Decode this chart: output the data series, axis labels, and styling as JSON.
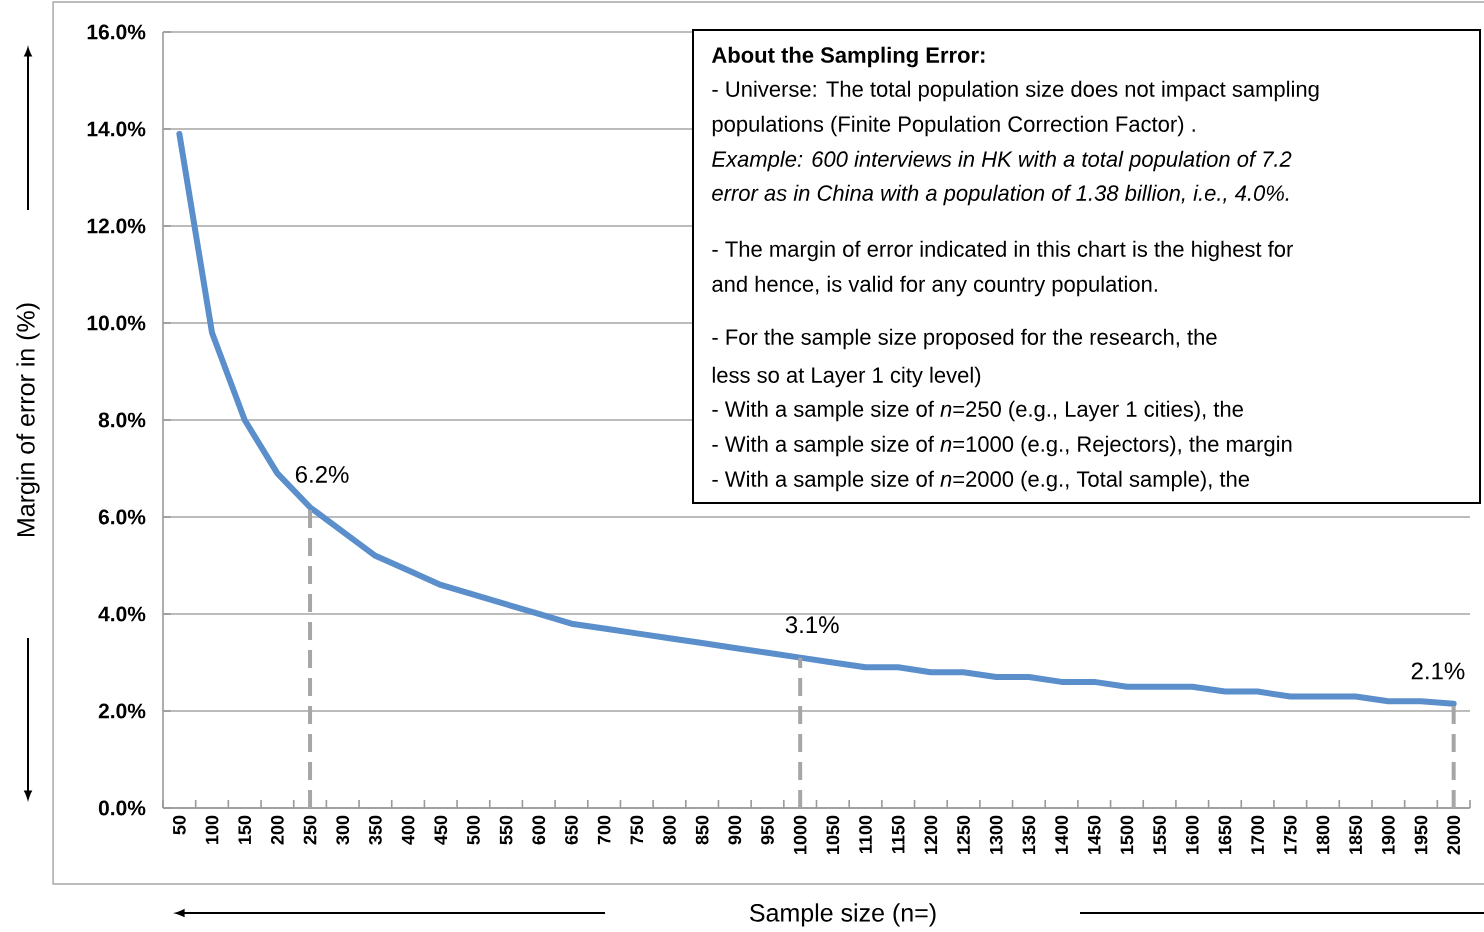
{
  "chart_data": {
    "type": "line",
    "xlabel": "Sample size (n=)",
    "ylabel": "Margin of error in (%)",
    "categories": [
      "50",
      "100",
      "150",
      "200",
      "250",
      "300",
      "350",
      "400",
      "450",
      "500",
      "550",
      "600",
      "650",
      "700",
      "750",
      "800",
      "850",
      "900",
      "950",
      "1000",
      "1050",
      "1100",
      "1150",
      "1200",
      "1250",
      "1300",
      "1350",
      "1400",
      "1450",
      "1500",
      "1550",
      "1600",
      "1650",
      "1700",
      "1750",
      "1800",
      "1850",
      "1900",
      "1950",
      "2000"
    ],
    "series": [
      {
        "color": "#5b8fcc",
        "values": [
          13.9,
          9.8,
          8.0,
          6.9,
          6.2,
          5.7,
          5.2,
          4.9,
          4.6,
          4.4,
          4.2,
          4.0,
          3.8,
          3.7,
          3.6,
          3.5,
          3.4,
          3.3,
          3.2,
          3.1,
          3.0,
          2.9,
          2.9,
          2.8,
          2.8,
          2.7,
          2.7,
          2.6,
          2.6,
          2.5,
          2.5,
          2.5,
          2.4,
          2.4,
          2.3,
          2.3,
          2.3,
          2.2,
          2.2,
          2.15
        ]
      }
    ],
    "ylim": [
      0,
      16
    ],
    "yticks": [
      {
        "value": 0,
        "label": "0.0%"
      },
      {
        "value": 2,
        "label": "2.0%"
      },
      {
        "value": 4,
        "label": "4.0%"
      },
      {
        "value": 6,
        "label": "6.0%"
      },
      {
        "value": 8,
        "label": "8.0%"
      },
      {
        "value": 10,
        "label": "10.0%"
      },
      {
        "value": 12,
        "label": "12.0%"
      },
      {
        "value": 14,
        "label": "14.0%"
      },
      {
        "value": 16,
        "label": "16.0%"
      }
    ],
    "grid": "y",
    "ref_lines": [
      {
        "axis": "x",
        "value": "250",
        "color": "#a6a6a6",
        "line_style": "dashed"
      },
      {
        "axis": "x",
        "value": "1000",
        "color": "#a6a6a6",
        "line_style": "dashed"
      },
      {
        "axis": "x",
        "value": "2000",
        "color": "#a6a6a6",
        "line_style": "dashed"
      }
    ],
    "annotations": [
      {
        "text": "6.2%",
        "x": "250",
        "y": 6.2
      },
      {
        "text": "3.1%",
        "x": "1000",
        "y": 3.1
      },
      {
        "text": "2.1%",
        "x": "2000",
        "y": 2.15
      },
      "About the Sampling Error:",
      "- Universe: The total population size does not impact sampling",
      "populations (Finite Population Correction Factor) .",
      "*Example: 600 interviews in HK with a total population of 7.2*",
      "*error as in China with a population of 1.38 billion, i.e., 4.0%.*",
      "- The margin of error indicated in this chart is the highest for",
      "and hence, is valid for any country population.",
      "- For the sample size proposed for the research, the",
      "less so at Layer 1 city level)",
      "- With a sample size of *n*=250 (e.g., Layer 1 cities), the",
      "- With a sample size of *n*=1000 (e.g., Rejectors), the margin",
      "- With a sample size of *n*=2000 (e.g., Total sample), the"
    ]
  }
}
